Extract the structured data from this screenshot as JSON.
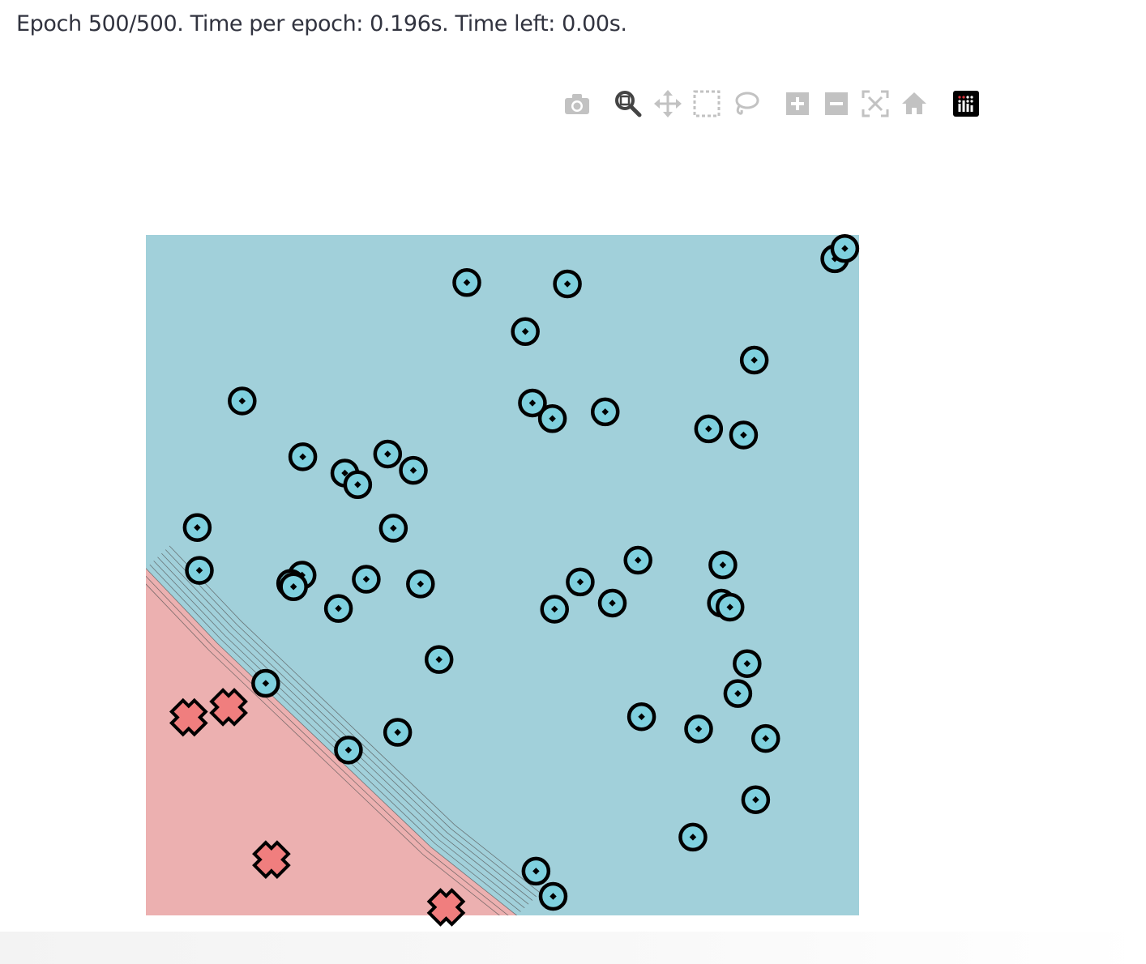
{
  "status_text": "Epoch 500/500. Time per epoch: 0.196s. Time left: 0.00s.",
  "modebar": {
    "buttons": [
      {
        "icon": "camera-icon"
      },
      {
        "icon": "zoom-icon",
        "active": true
      },
      {
        "icon": "pan-icon"
      },
      {
        "icon": "box-select-icon"
      },
      {
        "icon": "lasso-select-icon"
      },
      {
        "icon": "zoom-in-icon"
      },
      {
        "icon": "zoom-out-icon"
      },
      {
        "icon": "autoscale-icon"
      },
      {
        "icon": "reset-axes-icon"
      },
      {
        "icon": "plotly-logo-icon"
      }
    ]
  },
  "colors": {
    "positive_region": "#a1d0da",
    "negative_region": "#ecb0b0",
    "positive_marker": "#7fd0de",
    "negative_marker": "#f07e7e",
    "contour_line": "#555555"
  },
  "chart_data": {
    "type": "scatter",
    "xlim": [
      0,
      1
    ],
    "ylim": [
      0,
      1
    ],
    "grid": false,
    "legend": "none",
    "decision_boundary": [
      [
        0,
        0.51
      ],
      [
        0.1,
        0.4
      ],
      [
        0.2,
        0.3
      ],
      [
        0.3,
        0.2
      ],
      [
        0.4,
        0.1
      ],
      [
        0.52,
        0
      ]
    ],
    "series": [
      {
        "class": "positive",
        "marker": "circle-dot",
        "points": [
          [
            0.45,
            0.93
          ],
          [
            0.591,
            0.928
          ],
          [
            0.532,
            0.858
          ],
          [
            0.966,
            0.965
          ],
          [
            0.98,
            0.98
          ],
          [
            0.853,
            0.816
          ],
          [
            0.135,
            0.756
          ],
          [
            0.542,
            0.753
          ],
          [
            0.57,
            0.73
          ],
          [
            0.644,
            0.74
          ],
          [
            0.789,
            0.715
          ],
          [
            0.838,
            0.706
          ],
          [
            0.22,
            0.674
          ],
          [
            0.279,
            0.65
          ],
          [
            0.297,
            0.633
          ],
          [
            0.339,
            0.678
          ],
          [
            0.375,
            0.654
          ],
          [
            0.072,
            0.57
          ],
          [
            0.347,
            0.569
          ],
          [
            0.075,
            0.507
          ],
          [
            0.219,
            0.5
          ],
          [
            0.203,
            0.488
          ],
          [
            0.207,
            0.483
          ],
          [
            0.309,
            0.494
          ],
          [
            0.385,
            0.487
          ],
          [
            0.27,
            0.451
          ],
          [
            0.69,
            0.522
          ],
          [
            0.609,
            0.49
          ],
          [
            0.654,
            0.459
          ],
          [
            0.573,
            0.45
          ],
          [
            0.809,
            0.515
          ],
          [
            0.807,
            0.459
          ],
          [
            0.819,
            0.453
          ],
          [
            0.411,
            0.376
          ],
          [
            0.843,
            0.37
          ],
          [
            0.83,
            0.326
          ],
          [
            0.168,
            0.341
          ],
          [
            0.695,
            0.292
          ],
          [
            0.775,
            0.274
          ],
          [
            0.869,
            0.26
          ],
          [
            0.353,
            0.269
          ],
          [
            0.284,
            0.243
          ],
          [
            0.855,
            0.17
          ],
          [
            0.767,
            0.115
          ],
          [
            0.547,
            0.065
          ],
          [
            0.571,
            0.028
          ]
        ]
      },
      {
        "class": "negative",
        "marker": "x-thick",
        "points": [
          [
            0.06,
            0.291
          ],
          [
            0.116,
            0.306
          ],
          [
            0.176,
            0.082
          ],
          [
            0.421,
            0.012
          ]
        ]
      }
    ]
  }
}
